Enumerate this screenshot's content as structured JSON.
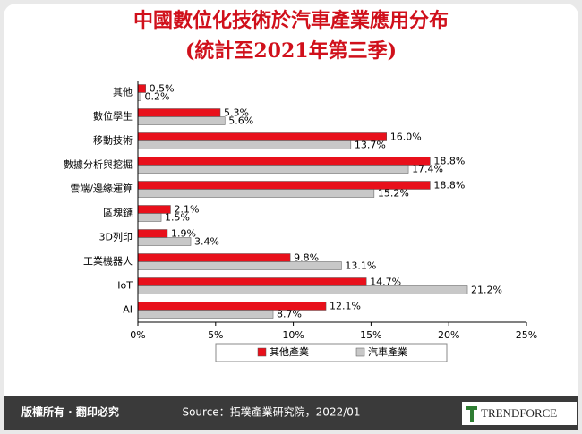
{
  "chart_data": {
    "type": "bar",
    "orientation": "horizontal",
    "title": "中國數位化技術於汽車產業應用分布",
    "subtitle": "(統計至2021年第三季)",
    "categories": [
      "其他",
      "數位學生",
      "移動技術",
      "數據分析與挖掘",
      "雲端/邊緣運算",
      "區塊鏈",
      "3D列印",
      "工業機器人",
      "IoT",
      "AI"
    ],
    "series": [
      {
        "name": "其他產業",
        "color": "#e8101b",
        "values": [
          0.5,
          5.3,
          16.0,
          18.8,
          18.8,
          2.1,
          1.9,
          9.8,
          14.7,
          12.1
        ],
        "value_labels": [
          "0.5%",
          "5.3%",
          "16.0%",
          "18.8%",
          "18.8%",
          "2.1%",
          "1.9%",
          "9.8%",
          "14.7%",
          "12.1%"
        ]
      },
      {
        "name": "汽車產業",
        "color": "#c8c8c8",
        "values": [
          0.2,
          5.6,
          13.7,
          17.4,
          15.2,
          1.5,
          3.4,
          13.1,
          21.2,
          8.7
        ],
        "value_labels": [
          "0.2%",
          "5.6%",
          "13.7%",
          "17.4%",
          "15.2%",
          "1.5%",
          "3.4%",
          "13.1%",
          "21.2%",
          "8.7%"
        ]
      }
    ],
    "xlim": [
      0,
      25
    ],
    "xticks": [
      {
        "value": 0,
        "label": "0%"
      },
      {
        "value": 5,
        "label": "5%"
      },
      {
        "value": 10,
        "label": "10%"
      },
      {
        "value": 15,
        "label": "15%"
      },
      {
        "value": 20,
        "label": "20%"
      },
      {
        "value": 25,
        "label": "25%"
      }
    ],
    "grid": false,
    "legend": "bottom"
  },
  "footer": {
    "copyright": "版權所有 · 翻印必究",
    "source": "Source：拓墣產業研究院，2022/01",
    "logo": "TRENDFORCE"
  }
}
